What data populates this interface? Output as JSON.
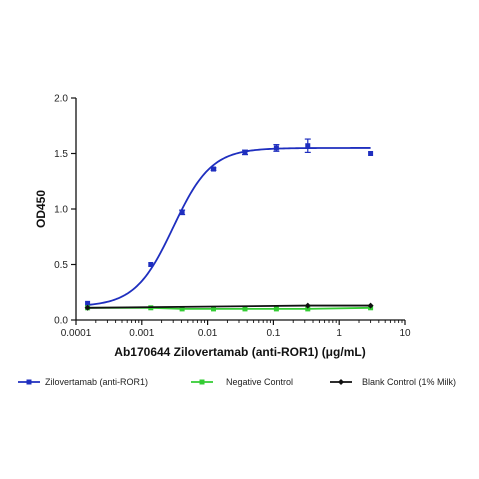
{
  "chart_data": {
    "type": "line",
    "title": "",
    "xlabel": "Ab170644 Zilovertamab (anti-ROR1) (μg/mL)",
    "ylabel": "OD450",
    "x_scale": "log",
    "xlim": [
      0.0001,
      10
    ],
    "ylim": [
      0,
      2.0
    ],
    "x_ticks": [
      0.0001,
      0.001,
      0.01,
      0.1,
      1,
      10
    ],
    "x_tick_labels": [
      "0.0001",
      "0.001",
      "0.01",
      "0.1",
      "1",
      "10"
    ],
    "y_ticks": [
      0,
      0.5,
      1.0,
      1.5,
      2.0
    ],
    "y_tick_labels": [
      "0.0",
      "0.5",
      "1.0",
      "1.5",
      "2.0"
    ],
    "grid": false,
    "legend_position": "bottom",
    "series": [
      {
        "name": "Zilovertamab (anti-ROR1)",
        "color": "#1f2fbf",
        "marker": "square",
        "x": [
          0.00015,
          0.00137,
          0.0041,
          0.0123,
          0.037,
          0.111,
          0.333,
          3.0
        ],
        "y": [
          0.15,
          0.5,
          0.97,
          1.36,
          1.51,
          1.55,
          1.57,
          1.5
        ],
        "error": [
          0,
          0,
          0.02,
          0.01,
          0.02,
          0.03,
          0.06,
          0
        ],
        "fit": {
          "bottom": 0.12,
          "top": 1.55,
          "ec50": 0.003,
          "hill": 1.5,
          "x_from": 0.00015,
          "x_to": 3.0
        }
      },
      {
        "name": "Negative Control",
        "color": "#33cc33",
        "marker": "square",
        "x": [
          0.00015,
          0.00137,
          0.0041,
          0.0123,
          0.037,
          0.111,
          0.333,
          3.0
        ],
        "y": [
          0.11,
          0.11,
          0.1,
          0.1,
          0.1,
          0.1,
          0.1,
          0.11
        ]
      },
      {
        "name": "Blank Control (1% Milk)",
        "color": "#111111",
        "marker": "diamond",
        "x": [
          0.00015,
          0.333,
          3.0
        ],
        "y": [
          0.11,
          0.13,
          0.13
        ]
      }
    ]
  }
}
